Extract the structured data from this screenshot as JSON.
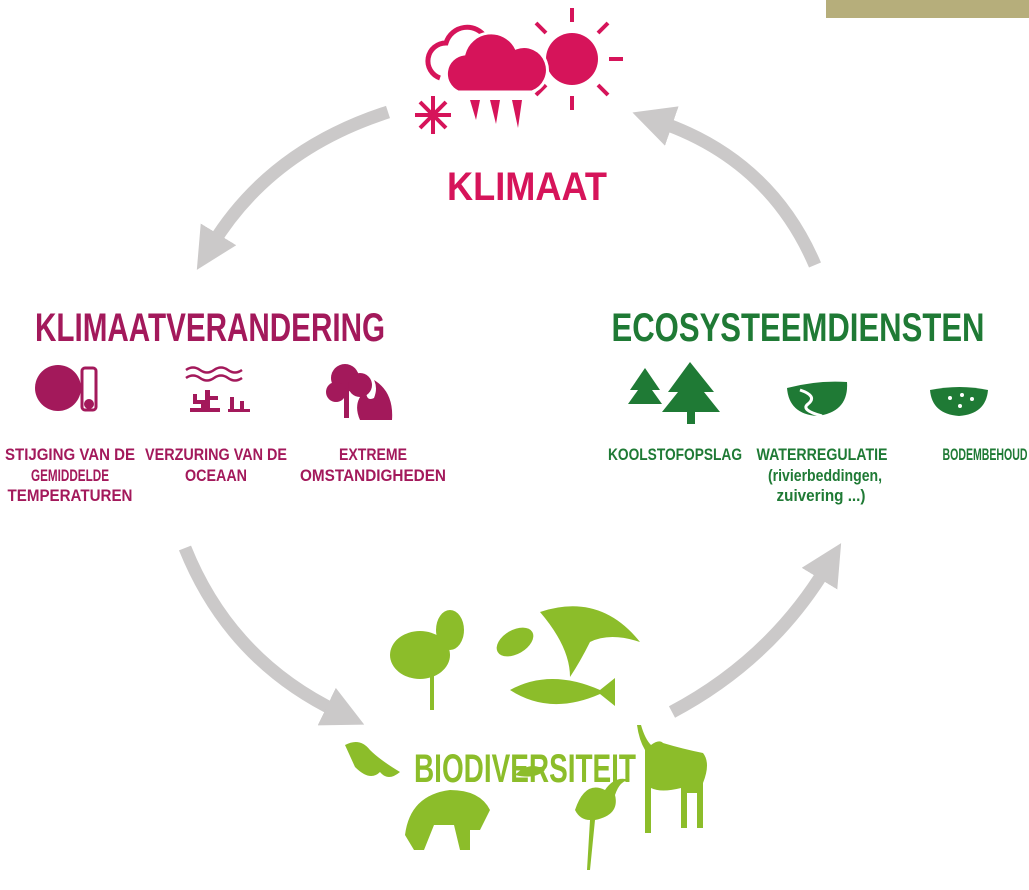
{
  "nodes": {
    "klimaat": {
      "title": "KLIMAAT"
    },
    "klimaatverandering": {
      "title": "KLIMAATVERANDERING",
      "items": [
        {
          "lines": [
            "STIJGING VAN DE",
            "GEMIDDELDE",
            "TEMPERATUREN"
          ]
        },
        {
          "lines": [
            "VERZURING VAN DE",
            "OCEAAN"
          ]
        },
        {
          "lines": [
            "EXTREME",
            "OMSTANDIGHEDEN"
          ]
        }
      ]
    },
    "ecosysteemdiensten": {
      "title": "ECOSYSTEEMDIENSTEN",
      "items": [
        {
          "lines": [
            "KOOLSTOFOPSLAG"
          ]
        },
        {
          "lines": [
            "WATERREGULATIE",
            "(rivierbeddingen,",
            "zuivering ...)"
          ]
        },
        {
          "lines": [
            "BODEMBEHOUD"
          ]
        }
      ]
    },
    "biodiversiteit": {
      "title": "BIODIVERSITEIT"
    }
  }
}
